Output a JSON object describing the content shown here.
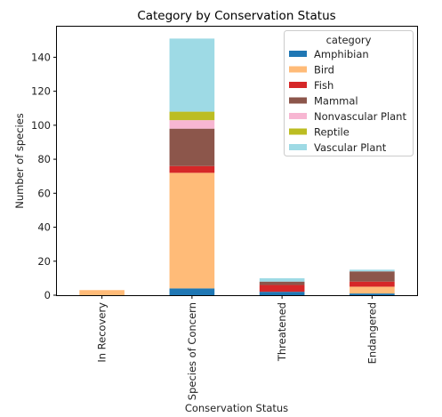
{
  "chart_data": {
    "type": "bar",
    "stacked": true,
    "title": "Category by Conservation Status",
    "xlabel": "Conservation Status",
    "ylabel": "Number of species",
    "categories": [
      "In Recovery",
      "Species of Concern",
      "Threatened",
      "Endangered"
    ],
    "category_labels": [
      "In Recovery",
      "Species of Concern",
      "Threatened",
      "Endangered"
    ],
    "ylim": [
      0,
      158
    ],
    "yticks": [
      0,
      20,
      40,
      60,
      80,
      100,
      120,
      140
    ],
    "grid": false,
    "legend": {
      "title": "category",
      "placement": "top-right"
    },
    "series": [
      {
        "name": "Amphibian",
        "color": "#1f77b4",
        "values": [
          0,
          4,
          2,
          1
        ]
      },
      {
        "name": "Bird",
        "color": "#ffbb78",
        "values": [
          3,
          68,
          0,
          4
        ]
      },
      {
        "name": "Fish",
        "color": "#d62728",
        "values": [
          0,
          4,
          4,
          3
        ]
      },
      {
        "name": "Mammal",
        "color": "#8c564b",
        "values": [
          0,
          22,
          2,
          6
        ]
      },
      {
        "name": "Nonvascular Plant",
        "color": "#f7b6d2",
        "values": [
          0,
          5,
          0,
          0
        ]
      },
      {
        "name": "Reptile",
        "color": "#bcbd22",
        "values": [
          0,
          5,
          0,
          0
        ]
      },
      {
        "name": "Vascular Plant",
        "color": "#9edae5",
        "values": [
          0,
          43,
          2,
          1
        ]
      }
    ]
  }
}
